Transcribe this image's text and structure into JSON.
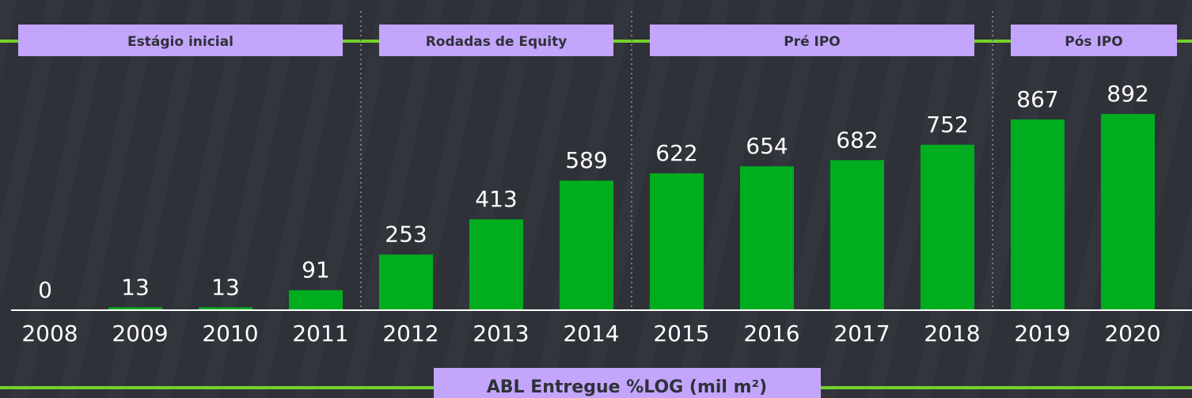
{
  "chart_data": {
    "type": "bar",
    "x_label": "ABL Entregue %LOG (mil m²)",
    "categories": [
      "2008",
      "2009",
      "2010",
      "2011",
      "2012",
      "2013",
      "2014",
      "2015",
      "2016",
      "2017",
      "2018",
      "2019",
      "2020"
    ],
    "values": [
      0,
      13,
      13,
      91,
      253,
      413,
      589,
      622,
      654,
      682,
      752,
      867,
      892
    ],
    "color": "#00ad1f",
    "phases": [
      {
        "label": "Estágio inicial",
        "categories": [
          "2008",
          "2009",
          "2010",
          "2011"
        ]
      },
      {
        "label": "Rodadas de Equity",
        "categories": [
          "2012",
          "2013",
          "2014"
        ]
      },
      {
        "label": "Pré IPO",
        "categories": [
          "2015",
          "2016",
          "2017",
          "2018"
        ]
      },
      {
        "label": "Pós IPO",
        "categories": [
          "2019",
          "2020"
        ]
      }
    ]
  }
}
